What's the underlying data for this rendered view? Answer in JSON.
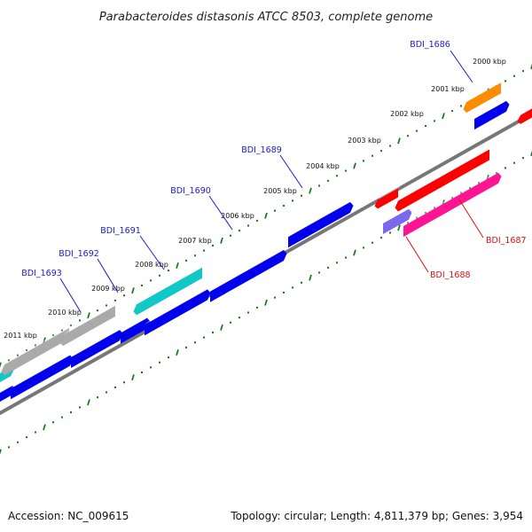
{
  "title": "Parabacteroides distasonis ATCC 8503, complete genome",
  "footer": {
    "accession": "Accession: NC_009615",
    "summary": "Topology: circular; Length: 4,811,379 bp; Genes: 3,954"
  },
  "kbp_markers": [
    "2000 kbp",
    "2001 kbp",
    "2002 kbp",
    "2003 kbp",
    "2004 kbp",
    "2005 kbp",
    "2006 kbp",
    "2007 kbp",
    "2008 kbp",
    "2009 kbp",
    "2010 kbp",
    "2011 kbp"
  ],
  "gene_labels": [
    {
      "id": "BDI_1686",
      "color": "#1a1acc"
    },
    {
      "id": "BDI_1689",
      "color": "#1a1acc"
    },
    {
      "id": "BDI_1690",
      "color": "#1a1acc"
    },
    {
      "id": "BDI_1691",
      "color": "#1a1acc"
    },
    {
      "id": "BDI_1692",
      "color": "#1a1acc"
    },
    {
      "id": "BDI_1693",
      "color": "#1a1acc"
    },
    {
      "id": "BDI_1687",
      "color": "#dd1111"
    },
    {
      "id": "BDI_1688",
      "color": "#dd1111"
    }
  ],
  "colors": {
    "forward_cds": "#0000ee",
    "reverse_cds": "#ff0000",
    "cyan_feature": "#10c8c8",
    "grey_feature": "#aaaaaa",
    "orange_feature": "#ff8c00",
    "pink_feature": "#ff1493",
    "purple_feature": "#7b68ee",
    "backbone": "#777777",
    "tick": "#117711"
  }
}
